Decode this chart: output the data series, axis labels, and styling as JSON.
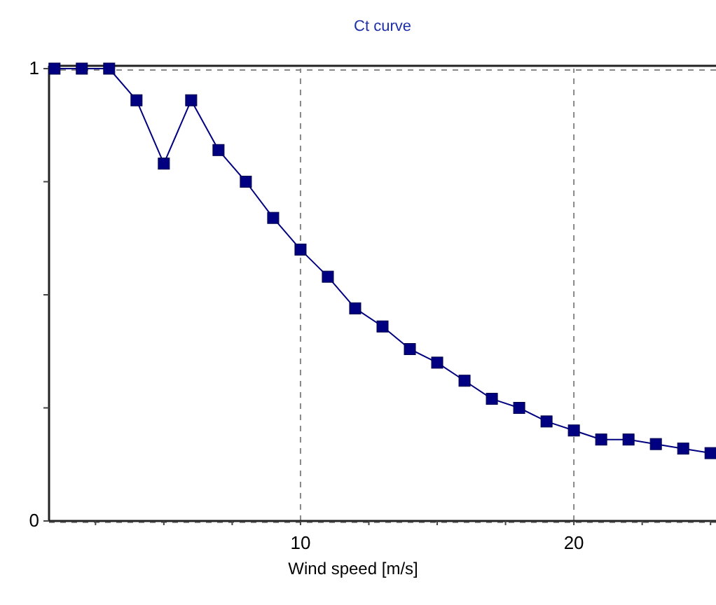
{
  "chart_data": {
    "type": "line",
    "title": "Ct curve",
    "xlabel": "Wind speed [m/s]",
    "x": [
      1,
      2,
      3,
      4,
      5,
      6,
      7,
      8,
      9,
      10,
      11,
      12,
      13,
      14,
      15,
      16,
      17,
      18,
      19,
      20,
      21,
      22,
      23,
      24,
      25
    ],
    "series": [
      {
        "color": "#000080",
        "values": [
          1,
          1,
          1,
          0.93,
          0.79,
          0.93,
          0.82,
          0.75,
          0.67,
          0.6,
          0.54,
          0.47,
          0.43,
          0.38,
          0.35,
          0.31,
          0.27,
          0.25,
          0.22,
          0.2,
          0.18,
          0.18,
          0.17,
          0.16,
          0.15
        ]
      }
    ],
    "xlim": [
      0.8,
      25.2
    ],
    "ylim": [
      0,
      1
    ],
    "xticks": [
      {
        "value": 2.5,
        "label": null
      },
      {
        "value": 5,
        "label": null
      },
      {
        "value": 7.5,
        "label": null
      },
      10,
      {
        "value": 12.5,
        "label": null
      },
      {
        "value": 15,
        "label": null
      },
      {
        "value": 17.5,
        "label": null
      },
      20,
      {
        "value": 22.5,
        "label": null
      },
      {
        "value": 25,
        "label": null
      }
    ],
    "yticks": [
      0,
      {
        "value": 0.25,
        "label": null
      },
      {
        "value": 0.5,
        "label": null
      },
      {
        "value": 0.75,
        "label": null
      },
      1
    ],
    "grid": true,
    "marker": "square",
    "line_style": "solid"
  }
}
